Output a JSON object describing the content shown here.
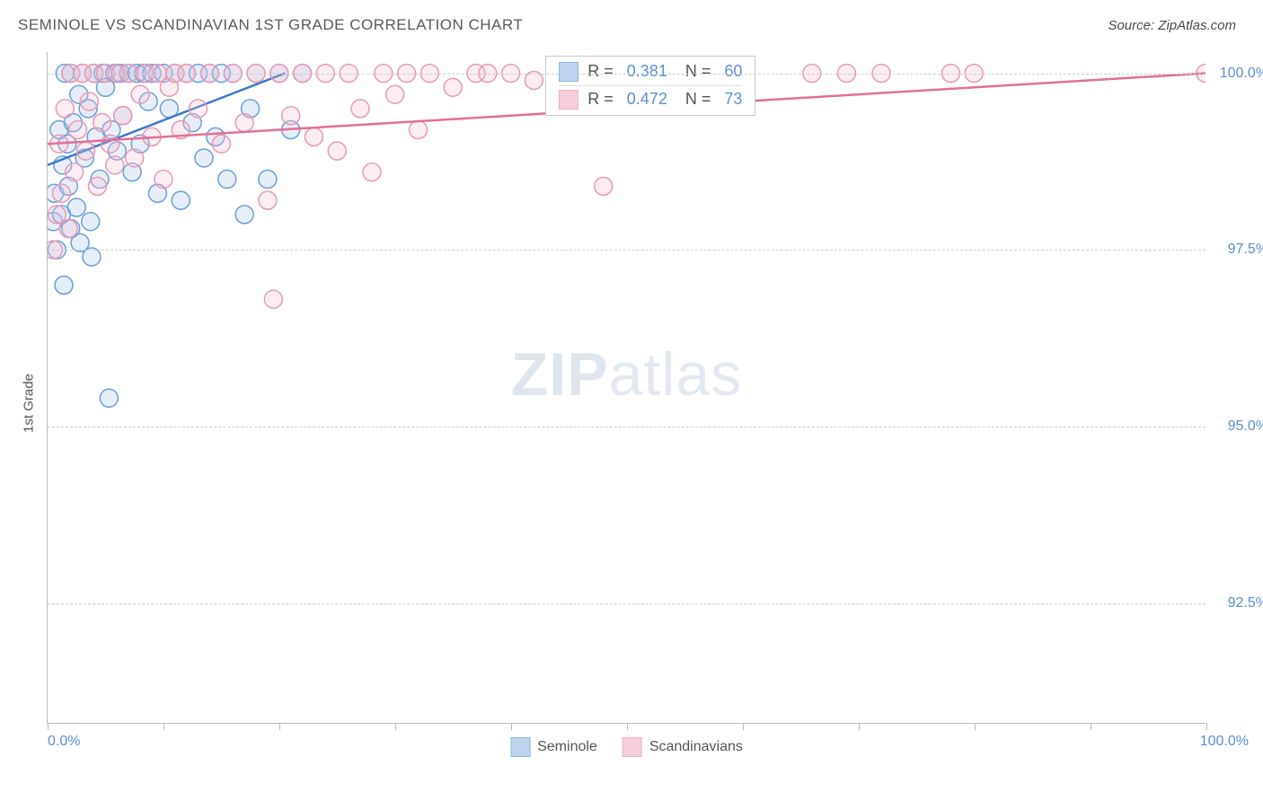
{
  "header": {
    "title": "SEMINOLE VS SCANDINAVIAN 1ST GRADE CORRELATION CHART",
    "source_label": "Source: ZipAtlas.com"
  },
  "watermark": {
    "bold": "ZIP",
    "light": "atlas"
  },
  "chart": {
    "type": "scatter",
    "y_axis_label": "1st Grade",
    "x_range": [
      0,
      100
    ],
    "y_range": [
      90.8,
      100.3
    ],
    "x_ticks": [
      0,
      10,
      20,
      30,
      40,
      50,
      60,
      70,
      80,
      90,
      100
    ],
    "x_tick_labels_shown": {
      "min": "0.0%",
      "max": "100.0%"
    },
    "y_ticks": [
      92.5,
      95.0,
      97.5,
      100.0
    ],
    "y_tick_labels": [
      "92.5%",
      "95.0%",
      "97.5%",
      "100.0%"
    ],
    "grid_color": "#cccccc",
    "axis_color": "#bbbbbb",
    "background_color": "#ffffff",
    "tick_label_color": "#5b8fd6",
    "label_fontsize": 15,
    "tick_fontsize": 16,
    "marker_radius": 10,
    "marker_stroke_width": 1.5,
    "marker_fill_opacity": 0.28,
    "series": [
      {
        "name": "Seminole",
        "stroke": "#6a9edc",
        "fill": "#a7c6ea",
        "trend_color": "#3b78c9",
        "trend_width": 2.5,
        "R": "0.381",
        "N": "60",
        "trend": {
          "x1": 0,
          "y1": 98.7,
          "x2": 20.5,
          "y2": 100.0
        },
        "points": [
          [
            0.5,
            97.9
          ],
          [
            0.6,
            98.3
          ],
          [
            0.8,
            97.5
          ],
          [
            1.0,
            99.2
          ],
          [
            1.2,
            98.0
          ],
          [
            1.3,
            98.7
          ],
          [
            1.5,
            100.0
          ],
          [
            1.7,
            99.0
          ],
          [
            1.8,
            98.4
          ],
          [
            2.0,
            100.0
          ],
          [
            2.2,
            99.3
          ],
          [
            2.5,
            98.1
          ],
          [
            2.7,
            99.7
          ],
          [
            3.0,
            100.0
          ],
          [
            3.2,
            98.8
          ],
          [
            3.5,
            99.5
          ],
          [
            3.7,
            97.9
          ],
          [
            4.0,
            100.0
          ],
          [
            4.2,
            99.1
          ],
          [
            4.5,
            98.5
          ],
          [
            4.8,
            100.0
          ],
          [
            5.0,
            99.8
          ],
          [
            5.3,
            95.4
          ],
          [
            5.5,
            99.2
          ],
          [
            5.8,
            100.0
          ],
          [
            6.0,
            98.9
          ],
          [
            6.3,
            100.0
          ],
          [
            6.5,
            99.4
          ],
          [
            7.0,
            100.0
          ],
          [
            7.3,
            98.6
          ],
          [
            7.7,
            100.0
          ],
          [
            8.0,
            99.0
          ],
          [
            8.3,
            100.0
          ],
          [
            8.7,
            99.6
          ],
          [
            9.0,
            100.0
          ],
          [
            9.5,
            98.3
          ],
          [
            10.0,
            100.0
          ],
          [
            10.5,
            99.5
          ],
          [
            11.0,
            100.0
          ],
          [
            11.5,
            98.2
          ],
          [
            12.0,
            100.0
          ],
          [
            12.5,
            99.3
          ],
          [
            13.0,
            100.0
          ],
          [
            13.5,
            98.8
          ],
          [
            14.0,
            100.0
          ],
          [
            14.5,
            99.1
          ],
          [
            15.0,
            100.0
          ],
          [
            15.5,
            98.5
          ],
          [
            16.0,
            100.0
          ],
          [
            17.0,
            98.0
          ],
          [
            17.5,
            99.5
          ],
          [
            18.0,
            100.0
          ],
          [
            19.0,
            98.5
          ],
          [
            20.0,
            100.0
          ],
          [
            21.0,
            99.2
          ],
          [
            22.0,
            100.0
          ],
          [
            2.8,
            97.6
          ],
          [
            3.8,
            97.4
          ],
          [
            1.4,
            97.0
          ],
          [
            2.0,
            97.8
          ]
        ]
      },
      {
        "name": "Scandinavians",
        "stroke": "#e89ab2",
        "fill": "#f4c0d0",
        "trend_color": "#e36f96",
        "trend_width": 2.5,
        "R": "0.472",
        "N": "73",
        "trend": {
          "x1": 0,
          "y1": 99.0,
          "x2": 100,
          "y2": 100.0
        },
        "points": [
          [
            0.5,
            97.5
          ],
          [
            0.8,
            98.0
          ],
          [
            1.0,
            99.0
          ],
          [
            1.2,
            98.3
          ],
          [
            1.5,
            99.5
          ],
          [
            1.8,
            97.8
          ],
          [
            2.0,
            100.0
          ],
          [
            2.3,
            98.6
          ],
          [
            2.6,
            99.2
          ],
          [
            3.0,
            100.0
          ],
          [
            3.3,
            98.9
          ],
          [
            3.6,
            99.6
          ],
          [
            4.0,
            100.0
          ],
          [
            4.3,
            98.4
          ],
          [
            4.7,
            99.3
          ],
          [
            5.0,
            100.0
          ],
          [
            5.4,
            99.0
          ],
          [
            5.8,
            98.7
          ],
          [
            6.0,
            100.0
          ],
          [
            6.5,
            99.4
          ],
          [
            7.0,
            100.0
          ],
          [
            7.5,
            98.8
          ],
          [
            8.0,
            99.7
          ],
          [
            8.5,
            100.0
          ],
          [
            9.0,
            99.1
          ],
          [
            9.5,
            100.0
          ],
          [
            10.0,
            98.5
          ],
          [
            10.5,
            99.8
          ],
          [
            11.0,
            100.0
          ],
          [
            11.5,
            99.2
          ],
          [
            12.0,
            100.0
          ],
          [
            13.0,
            99.5
          ],
          [
            14.0,
            100.0
          ],
          [
            15.0,
            99.0
          ],
          [
            16.0,
            100.0
          ],
          [
            17.0,
            99.3
          ],
          [
            18.0,
            100.0
          ],
          [
            19.0,
            98.2
          ],
          [
            19.5,
            96.8
          ],
          [
            20.0,
            100.0
          ],
          [
            21.0,
            99.4
          ],
          [
            22.0,
            100.0
          ],
          [
            23.0,
            99.1
          ],
          [
            24.0,
            100.0
          ],
          [
            25.0,
            98.9
          ],
          [
            26.0,
            100.0
          ],
          [
            27.0,
            99.5
          ],
          [
            28.0,
            98.6
          ],
          [
            29.0,
            100.0
          ],
          [
            30.0,
            99.7
          ],
          [
            31.0,
            100.0
          ],
          [
            32.0,
            99.2
          ],
          [
            33.0,
            100.0
          ],
          [
            35.0,
            99.8
          ],
          [
            37.0,
            100.0
          ],
          [
            38.0,
            100.0
          ],
          [
            40.0,
            100.0
          ],
          [
            42.0,
            99.9
          ],
          [
            45.0,
            100.0
          ],
          [
            47.0,
            100.0
          ],
          [
            48.0,
            98.4
          ],
          [
            50.0,
            100.0
          ],
          [
            52.0,
            100.0
          ],
          [
            54.0,
            100.0
          ],
          [
            56.0,
            100.0
          ],
          [
            58.0,
            100.0
          ],
          [
            60.0,
            100.0
          ],
          [
            66.0,
            100.0
          ],
          [
            69.0,
            100.0
          ],
          [
            72.0,
            100.0
          ],
          [
            78.0,
            100.0
          ],
          [
            80.0,
            100.0
          ],
          [
            100.0,
            100.0
          ]
        ]
      }
    ],
    "stats_box": {
      "left_pct": 43,
      "top_pct": 0.5
    },
    "legend_labels": [
      "Seminole",
      "Scandinavians"
    ]
  }
}
